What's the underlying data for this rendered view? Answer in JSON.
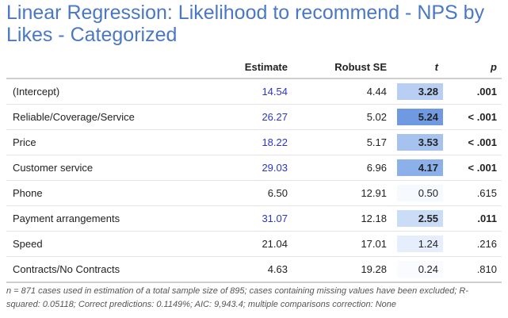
{
  "title": "Linear Regression: Likelihood to recommend - NPS by Likes - Categorized",
  "columns": {
    "label": "",
    "estimate": "Estimate",
    "robust_se": "Robust SE",
    "t": "t",
    "p": "p"
  },
  "rows": [
    {
      "label": "(Intercept)",
      "estimate": "14.54",
      "robust_se": "4.44",
      "t": "3.28",
      "p": ".001",
      "significant": true,
      "t_color": "#b8cff3"
    },
    {
      "label": "Reliable/Coverage/Service",
      "estimate": "26.27",
      "robust_se": "5.02",
      "t": "5.24",
      "p": "< .001",
      "significant": true,
      "t_color": "#6f9ae2"
    },
    {
      "label": "Price",
      "estimate": "18.22",
      "robust_se": "5.17",
      "t": "3.53",
      "p": "< .001",
      "significant": true,
      "t_color": "#a6c3f0"
    },
    {
      "label": "Customer service",
      "estimate": "29.03",
      "robust_se": "6.96",
      "t": "4.17",
      "p": "< .001",
      "significant": true,
      "t_color": "#8cb0ea"
    },
    {
      "label": "Phone",
      "estimate": "6.50",
      "robust_se": "12.91",
      "t": "0.50",
      "p": ".615",
      "significant": false,
      "t_color": "#f6f9fe"
    },
    {
      "label": "Payment arrangements",
      "estimate": "31.07",
      "robust_se": "12.18",
      "t": "2.55",
      "p": ".011",
      "significant": true,
      "t_color": "#cbdcf6"
    },
    {
      "label": "Speed",
      "estimate": "21.04",
      "robust_se": "17.01",
      "t": "1.24",
      "p": ".216",
      "significant": false,
      "t_color": "#e6eefb"
    },
    {
      "label": "Contracts/No Contracts",
      "estimate": "4.63",
      "robust_se": "19.28",
      "t": "0.24",
      "p": ".810",
      "significant": false,
      "t_color": "#f9fbfe"
    }
  ],
  "footnote": "n = 871 cases used in estimation of a total sample size of 895; cases containing missing values have been excluded; R-squared: 0.05118; Correct predictions: 0.1149%; AIC: 9,943.4; multiple comparisons correction: None",
  "colors": {
    "title": "#4a78c2",
    "significant_estimate": "#2a36c8"
  }
}
